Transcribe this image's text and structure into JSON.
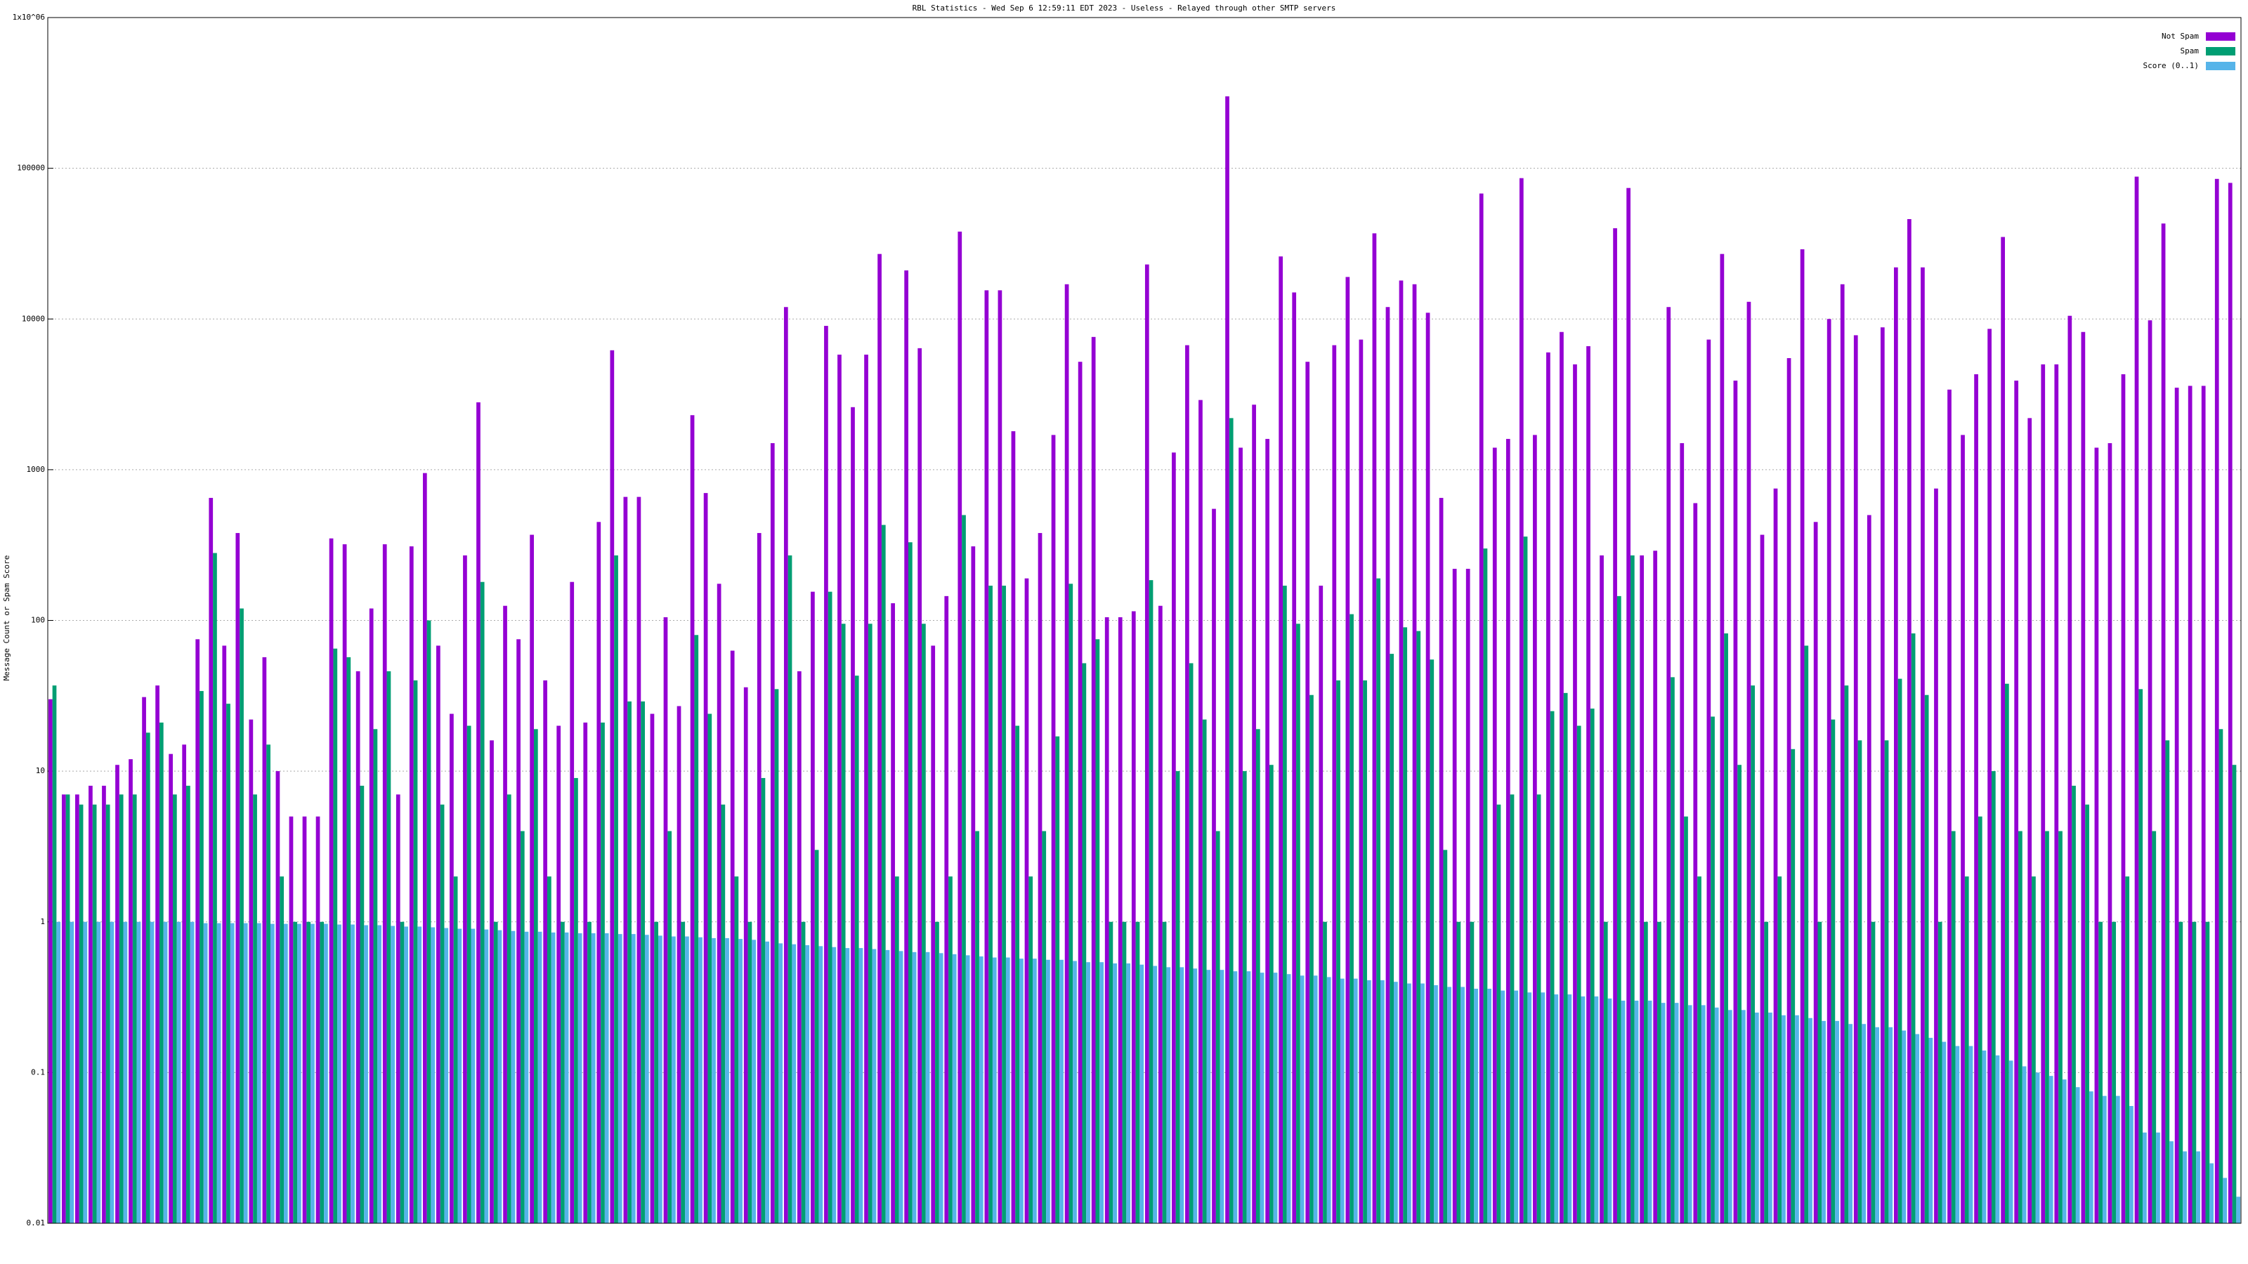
{
  "chart_data": {
    "type": "bar",
    "title": "RBL Statistics - Wed Sep  6 12:59:11 EDT 2023 - Useless - Relayed through other SMTP servers",
    "y_label": "Message Count or Spam Score",
    "log_scale": true,
    "grid": true,
    "legend": "top-right",
    "ylim": [
      0.01,
      1000000
    ],
    "yticks": [
      {
        "value": 0.01,
        "label": "0.01"
      },
      0.1,
      1,
      10,
      100,
      1000,
      10000,
      100000,
      {
        "value": 1000000,
        "label": "1x10^06"
      }
    ],
    "categories": [
      null,
      null,
      null,
      null,
      null,
      null,
      null,
      null,
      null,
      null,
      null,
      null,
      null,
      null,
      null,
      null,
      null,
      null,
      null,
      null,
      null,
      null,
      null,
      null,
      null,
      null,
      null,
      null,
      null,
      null,
      null,
      null,
      null,
      null,
      null,
      null,
      null,
      null,
      null,
      null,
      null,
      null,
      null,
      null,
      null,
      null,
      null,
      null,
      null,
      null,
      null,
      null,
      null,
      null,
      null,
      null,
      null,
      null,
      null,
      null,
      null,
      null,
      null,
      null,
      null,
      null,
      null,
      null,
      null,
      null,
      null,
      null,
      null,
      null,
      null,
      null,
      null,
      null,
      null,
      null,
      null,
      null,
      null,
      null,
      null,
      null,
      null,
      null,
      null,
      null,
      null,
      null,
      null,
      null,
      null,
      null,
      null,
      null,
      null,
      null,
      null,
      null,
      null,
      null,
      null,
      null,
      null,
      null,
      null,
      null,
      null,
      null,
      null,
      null,
      null,
      null,
      null,
      null,
      null,
      null,
      null,
      null,
      null,
      null,
      null,
      null,
      null,
      null,
      null,
      null,
      null,
      null,
      null,
      null,
      null,
      null,
      null,
      null,
      null,
      null,
      null,
      null,
      null,
      null,
      null,
      null,
      null,
      null,
      null,
      null,
      null,
      null,
      null,
      null,
      null,
      null,
      null,
      null,
      null,
      null,
      null,
      null,
      null,
      null
    ],
    "series": [
      {
        "name": "Not Spam",
        "color": "#9400d3",
        "values": [
          30,
          7,
          7,
          8,
          8,
          11,
          12,
          31,
          37,
          13,
          15,
          75,
          650,
          68,
          380,
          22,
          57,
          10,
          5,
          5,
          5,
          350,
          320,
          46,
          120,
          320,
          7,
          310,
          950,
          68,
          24,
          270,
          2800,
          16,
          125,
          75,
          370,
          40,
          20,
          180,
          21,
          450,
          6200,
          660,
          660,
          24,
          105,
          27,
          2300,
          700,
          175,
          63,
          36,
          380,
          1500,
          12000,
          46,
          155,
          9000,
          5800,
          2600,
          5800,
          27000,
          130,
          21000,
          6400,
          68,
          145,
          38000,
          310,
          15500,
          15500,
          1800,
          190,
          380,
          1700,
          17000,
          5200,
          7600,
          105,
          105,
          115,
          23000,
          125,
          1300,
          6700,
          2900,
          550,
          300000,
          1400,
          2700,
          1600,
          26000,
          15000,
          5200,
          170,
          6700,
          19000,
          7300,
          37000,
          12000,
          18000,
          17000,
          11000,
          650,
          220,
          220,
          68000,
          1400,
          1600,
          86000,
          1700,
          6000,
          8200,
          5000,
          6600,
          270,
          40000,
          74000,
          270,
          290,
          12000,
          1500,
          600,
          7300,
          27000,
          3900,
          13000,
          370,
          750,
          5500,
          29000,
          450,
          10000,
          17000,
          7800,
          500,
          8800,
          22000,
          46000,
          22000,
          750,
          3400,
          1700,
          4300,
          8600,
          35000,
          3900,
          2200,
          5000,
          5000,
          10500,
          8200,
          1400,
          1500,
          4300,
          88000,
          9800,
          43000,
          3500,
          3600,
          3600,
          85000,
          80000
        ]
      },
      {
        "name": "Spam",
        "color": "#009e73",
        "values": [
          37,
          7,
          6,
          6,
          6,
          7,
          7,
          18,
          21,
          7,
          8,
          34,
          280,
          28,
          120,
          7,
          15,
          2,
          1,
          1,
          1,
          65,
          57,
          8,
          19,
          46,
          1,
          40,
          100,
          6,
          2,
          20,
          180,
          1,
          7,
          4,
          19,
          2,
          1,
          9,
          1,
          21,
          270,
          29,
          29,
          1,
          4,
          1,
          80,
          24,
          6,
          2,
          1,
          9,
          35,
          270,
          1,
          3,
          155,
          95,
          43,
          95,
          430,
          2,
          330,
          95,
          1,
          2,
          500,
          4,
          170,
          170,
          20,
          2,
          4,
          17,
          175,
          52,
          75,
          1,
          1,
          1,
          185,
          1,
          10,
          52,
          22,
          4,
          2200,
          10,
          19,
          11,
          170,
          95,
          32,
          1,
          40,
          110,
          40,
          190,
          60,
          90,
          85,
          55,
          3,
          1,
          1,
          300,
          6,
          7,
          360,
          7,
          25,
          33,
          20,
          26,
          1,
          145,
          270,
          1,
          1,
          42,
          5,
          2,
          23,
          82,
          11,
          37,
          1,
          2,
          14,
          68,
          1,
          22,
          37,
          16,
          1,
          16,
          41,
          82,
          32,
          1,
          4,
          2,
          5,
          10,
          38,
          4,
          2,
          4,
          4,
          8,
          6,
          1,
          1,
          2,
          35,
          4,
          16,
          1,
          1,
          1,
          19,
          11
        ]
      },
      {
        "name": "Score (0..1)",
        "color": "#56b4e9",
        "values": [
          1,
          1,
          1,
          1,
          1,
          1,
          1,
          1,
          1,
          1,
          1,
          0.98,
          0.98,
          0.98,
          0.98,
          0.98,
          0.97,
          0.97,
          0.97,
          0.97,
          0.97,
          0.96,
          0.96,
          0.95,
          0.95,
          0.94,
          0.93,
          0.93,
          0.92,
          0.91,
          0.9,
          0.9,
          0.89,
          0.88,
          0.87,
          0.86,
          0.86,
          0.85,
          0.85,
          0.84,
          0.84,
          0.84,
          0.83,
          0.83,
          0.82,
          0.81,
          0.8,
          0.8,
          0.79,
          0.78,
          0.78,
          0.77,
          0.76,
          0.74,
          0.72,
          0.71,
          0.7,
          0.69,
          0.68,
          0.67,
          0.67,
          0.66,
          0.65,
          0.64,
          0.63,
          0.63,
          0.62,
          0.61,
          0.6,
          0.59,
          0.58,
          0.58,
          0.57,
          0.57,
          0.56,
          0.56,
          0.55,
          0.54,
          0.54,
          0.53,
          0.53,
          0.52,
          0.51,
          0.5,
          0.5,
          0.49,
          0.48,
          0.48,
          0.47,
          0.47,
          0.46,
          0.46,
          0.45,
          0.44,
          0.44,
          0.43,
          0.42,
          0.42,
          0.41,
          0.41,
          0.4,
          0.39,
          0.39,
          0.38,
          0.37,
          0.37,
          0.36,
          0.36,
          0.35,
          0.35,
          0.34,
          0.34,
          0.33,
          0.33,
          0.32,
          0.32,
          0.31,
          0.3,
          0.3,
          0.3,
          0.29,
          0.29,
          0.28,
          0.28,
          0.27,
          0.26,
          0.26,
          0.25,
          0.25,
          0.24,
          0.24,
          0.23,
          0.22,
          0.22,
          0.21,
          0.21,
          0.2,
          0.2,
          0.19,
          0.18,
          0.17,
          0.16,
          0.15,
          0.15,
          0.14,
          0.13,
          0.12,
          0.11,
          0.1,
          0.095,
          0.09,
          0.08,
          0.075,
          0.07,
          0.07,
          0.06,
          0.04,
          0.04,
          0.035,
          0.03,
          0.03,
          0.025,
          0.02,
          0.015
        ]
      }
    ]
  }
}
